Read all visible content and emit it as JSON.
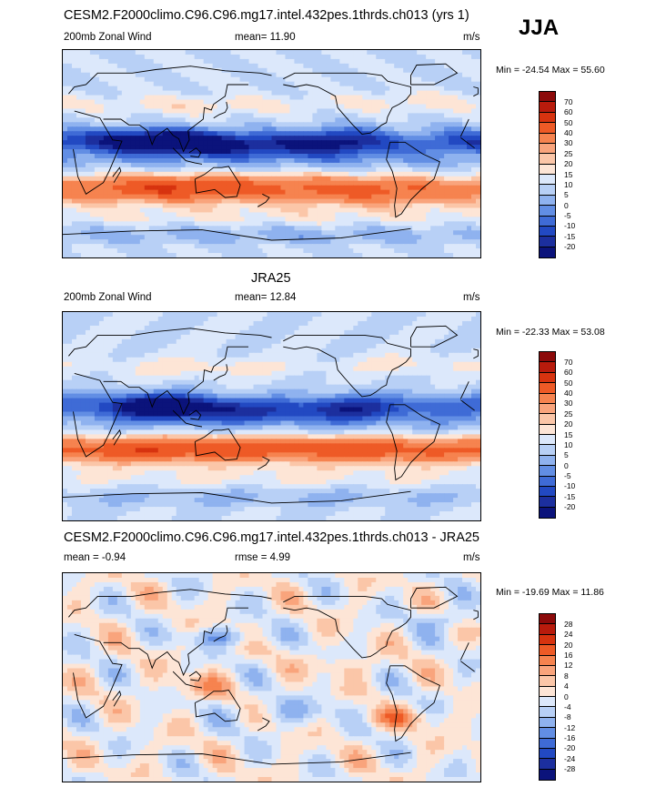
{
  "season": "JJA",
  "chart_data": [
    {
      "type": "heatmap",
      "title": "CESM2.F2000climo.C96.C96.mg17.intel.432pes.1thrds.ch013 (yrs 1)",
      "left_label": "200mb Zonal Wind",
      "center_label": "mean=  11.90",
      "units": "m/s",
      "minmax": "Min = -24.54 Max =  55.60",
      "levels": [
        "70",
        "60",
        "50",
        "40",
        "30",
        "25",
        "20",
        "15",
        "10",
        "5",
        "0",
        "-5",
        "-10",
        "-15",
        "-20"
      ],
      "colors": [
        "#8c0a0a",
        "#b81b0c",
        "#d7330f",
        "#ee5a26",
        "#f6834f",
        "#f9a47c",
        "#fbc6a8",
        "#fde5d6",
        "#dce8fb",
        "#b8d0f6",
        "#8fb2ef",
        "#628ee4",
        "#3f6bd6",
        "#2249c2",
        "#1c2f9e",
        "#0b137b"
      ],
      "field": "model"
    },
    {
      "type": "heatmap",
      "title": "JRA25",
      "left_label": "200mb Zonal Wind",
      "center_label": "mean=  12.84",
      "units": "m/s",
      "minmax": "Min = -22.33 Max =  53.08",
      "levels": [
        "70",
        "60",
        "50",
        "40",
        "30",
        "25",
        "20",
        "15",
        "10",
        "5",
        "0",
        "-5",
        "-10",
        "-15",
        "-20"
      ],
      "colors": [
        "#8c0a0a",
        "#b81b0c",
        "#d7330f",
        "#ee5a26",
        "#f6834f",
        "#f9a47c",
        "#fbc6a8",
        "#fde5d6",
        "#dce8fb",
        "#b8d0f6",
        "#8fb2ef",
        "#628ee4",
        "#3f6bd6",
        "#2249c2",
        "#1c2f9e",
        "#0b137b"
      ],
      "field": "obs"
    },
    {
      "type": "heatmap",
      "title": "CESM2.F2000climo.C96.C96.mg17.intel.432pes.1thrds.ch013 - JRA25",
      "left_label": "mean =  -0.94",
      "center_label": "rmse =   4.99",
      "units": "m/s",
      "minmax": "Min = -19.69 Max =  11.86",
      "levels": [
        "28",
        "24",
        "20",
        "16",
        "12",
        "8",
        "4",
        "0",
        "-4",
        "-8",
        "-12",
        "-16",
        "-20",
        "-24",
        "-28"
      ],
      "colors": [
        "#8c0a0a",
        "#b81b0c",
        "#d7330f",
        "#ee5a26",
        "#f6834f",
        "#f9a47c",
        "#fbc6a8",
        "#fde5d6",
        "#dce8fb",
        "#b8d0f6",
        "#8fb2ef",
        "#628ee4",
        "#3f6bd6",
        "#2249c2",
        "#1c2f9e",
        "#0b137b"
      ],
      "field": "diff"
    }
  ]
}
